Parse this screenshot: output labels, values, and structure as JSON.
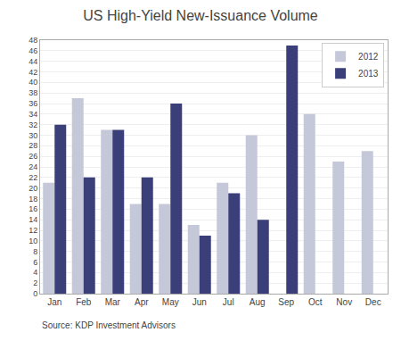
{
  "chart_data": {
    "type": "bar",
    "title": "US High-Yield New-Issuance Volume",
    "categories": [
      "Jan",
      "Feb",
      "Mar",
      "Apr",
      "May",
      "Jun",
      "Jul",
      "Aug",
      "Sep",
      "Oct",
      "Nov",
      "Dec"
    ],
    "series": [
      {
        "name": "2012",
        "color": "#c5c8d8",
        "values": [
          21,
          37,
          31,
          17,
          17,
          13,
          21,
          30,
          0,
          34,
          25,
          27
        ]
      },
      {
        "name": "2013",
        "color": "#3a3f7a",
        "values": [
          32,
          22,
          31,
          22,
          36,
          11,
          19,
          14,
          47,
          0,
          0,
          0
        ]
      }
    ],
    "ylim": [
      0,
      48
    ],
    "yticks": [
      0,
      2,
      4,
      6,
      8,
      10,
      12,
      14,
      16,
      18,
      20,
      22,
      24,
      26,
      28,
      30,
      32,
      34,
      36,
      38,
      40,
      42,
      44,
      46,
      48
    ],
    "grid": true,
    "legend": "upper right",
    "annotations": [
      "Source: KDP Investment Advisors"
    ]
  }
}
